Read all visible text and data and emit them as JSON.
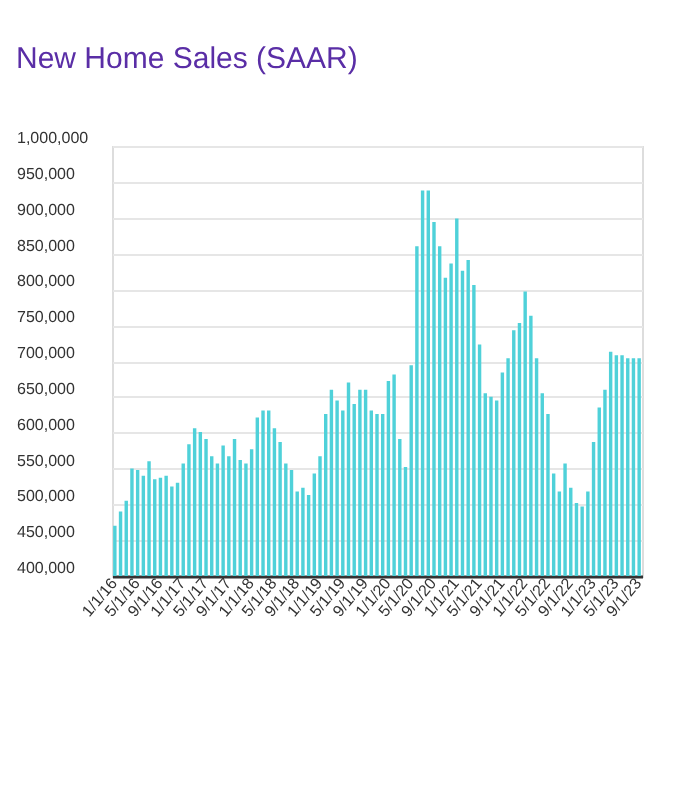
{
  "chart_data": {
    "type": "bar",
    "title": "New Home Sales (SAAR)",
    "categories": [
      "1/1/16",
      null,
      null,
      null,
      "5/1/16",
      null,
      null,
      null,
      "9/1/16",
      null,
      null,
      null,
      "1/1/17",
      null,
      null,
      null,
      "5/1/17",
      null,
      null,
      null,
      "9/1/17",
      null,
      null,
      null,
      "1/1/18",
      null,
      null,
      null,
      "5/1/18",
      null,
      null,
      null,
      "9/1/18",
      null,
      null,
      null,
      "1/1/19",
      null,
      null,
      null,
      "5/1/19",
      null,
      null,
      null,
      "9/1/19",
      null,
      null,
      null,
      "1/1/20",
      null,
      null,
      null,
      "5/1/20",
      null,
      null,
      null,
      "9/1/20",
      null,
      null,
      null,
      "1/1/21",
      null,
      null,
      null,
      "5/1/21",
      null,
      null,
      null,
      "9/1/21",
      null,
      null,
      null,
      "1/1/22",
      null,
      null,
      null,
      "5/1/22",
      null,
      null,
      null,
      "9/1/22",
      null,
      null,
      null,
      "1/1/23",
      null,
      null,
      null,
      "5/1/23",
      null,
      null,
      null,
      "9/1/23"
    ],
    "values": [
      470000,
      490000,
      505000,
      550000,
      548000,
      540000,
      560000,
      535000,
      537000,
      540000,
      525000,
      530000,
      557000,
      584000,
      606000,
      601000,
      591000,
      567000,
      557000,
      582000,
      567000,
      591000,
      562000,
      557000,
      577000,
      621000,
      631000,
      631000,
      606000,
      587000,
      557000,
      548000,
      518000,
      523000,
      513000,
      543000,
      567000,
      626000,
      660000,
      645000,
      631000,
      670000,
      640000,
      660000,
      660000,
      631000,
      626000,
      626000,
      672000,
      681000,
      591000,
      552000,
      694000,
      860000,
      938000,
      938000,
      894000,
      860000,
      816000,
      836000,
      899000,
      826000,
      841000,
      806000,
      723000,
      655000,
      650000,
      645000,
      684000,
      704000,
      743000,
      753000,
      797000,
      763000,
      704000,
      655000,
      626000,
      543000,
      518000,
      557000,
      523000,
      502000,
      497000,
      518000,
      587000,
      635000,
      660000,
      713000,
      708000,
      708000,
      704000,
      704000,
      704000
    ],
    "color": "#4fd1d9",
    "ylim": [
      400000,
      1000000
    ],
    "yticks": [
      {
        "value": 400000,
        "label": "400,000"
      },
      {
        "value": 450000,
        "label": "450,000"
      },
      {
        "value": 500000,
        "label": "500,000"
      },
      {
        "value": 550000,
        "label": "550,000"
      },
      {
        "value": 600000,
        "label": "600,000"
      },
      {
        "value": 650000,
        "label": "650,000"
      },
      {
        "value": 700000,
        "label": "700,000"
      },
      {
        "value": 750000,
        "label": "750,000"
      },
      {
        "value": 800000,
        "label": "800,000"
      },
      {
        "value": 850000,
        "label": "850,000"
      },
      {
        "value": 900000,
        "label": "900,000"
      },
      {
        "value": 950000,
        "label": "950,000"
      },
      {
        "value": 1000000,
        "label": "1,000,000"
      }
    ],
    "grid": "y"
  }
}
